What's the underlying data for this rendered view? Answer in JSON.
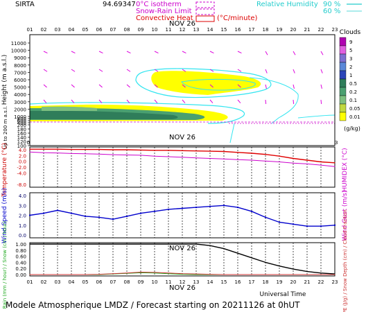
{
  "header": {
    "site": "SIRTA",
    "coords": "94.69347",
    "legend_isotherm": "0°C isotherm",
    "legend_snow_rain": "Snow-Rain Limit",
    "legend_convective": "Convective Heat",
    "legend_convective_unit": "(°C/minute)",
    "legend_rh": "Relative Humidity",
    "legend_rh_90": "90 %",
    "legend_rh_60": "60 %"
  },
  "date_label": "NOV 26",
  "hours": [
    "01",
    "02",
    "03",
    "04",
    "05",
    "06",
    "07",
    "08",
    "09",
    "10",
    "11",
    "12",
    "13",
    "14",
    "15",
    "16",
    "17",
    "18",
    "19",
    "20",
    "21",
    "22",
    "23"
  ],
  "footer": {
    "universal_time": "Universal Time",
    "title": "Modele Atmospherique LMDZ / Forecast starting on 20211126 at 0hUT"
  },
  "colors": {
    "cloud_yellow": "#ffff00",
    "cloud_green": "#5aa06a",
    "cloud_darkgreen": "#2f7d5a",
    "rh_cyan": "#33e5f0",
    "wind_arrow": "#dd00dd",
    "temperature": "#e00000",
    "humidex": "#cc00cc",
    "wind_speed": "#0000cc",
    "rain": "#22aa22",
    "snow": "#cc3333",
    "cloud_fraction": "#000000"
  },
  "cloud_scale": {
    "title": "Clouds",
    "unit": "(g/kg)",
    "levels": [
      "9",
      "5",
      "3",
      "2",
      "1",
      "0.5",
      "0.2",
      "0.1",
      "0.05",
      "0.01"
    ],
    "colors": [
      "#b000b0",
      "#e060e0",
      "#7d6fd0",
      "#5a88d8",
      "#2c45b8",
      "#2f7d5a",
      "#4aa070",
      "#7dc080",
      "#c0d840",
      "#ffff00"
    ]
  },
  "chart_data": [
    {
      "type": "heatmap",
      "title": "",
      "ylabel": "Height (m a.s.l.)",
      "ylabel2": "Up to 200 m a.s.l.",
      "yticks": [
        11000,
        10000,
        9000,
        8000,
        7000,
        6000,
        5000,
        4000,
        3000,
        2000,
        1000,
        800,
        600,
        400,
        200,
        180,
        160,
        140,
        120,
        100
      ],
      "x": [
        "01",
        "02",
        "03",
        "04",
        "05",
        "06",
        "07",
        "08",
        "09",
        "10",
        "11",
        "12",
        "13",
        "14",
        "15",
        "16",
        "17",
        "18",
        "19",
        "20",
        "21",
        "22",
        "23"
      ],
      "features": [
        "upper cloud layer ~5500-7000 m, 10h-17h, 0.01-0.05 g/kg",
        "low cloud layer below 2000 m, 01h-14h, up to 0.5 g/kg"
      ]
    },
    {
      "type": "line",
      "title": "",
      "ylabel": "Temperature (°C)",
      "ylabel2": "HUMIDEX (°C)",
      "x": [
        "01",
        "02",
        "03",
        "04",
        "05",
        "06",
        "07",
        "08",
        "09",
        "10",
        "11",
        "12",
        "13",
        "14",
        "15",
        "16",
        "17",
        "18",
        "19",
        "20",
        "21",
        "22",
        "23"
      ],
      "ylim": [
        -8.0,
        4.0
      ],
      "yticks": [
        "4.0",
        "2.0",
        "0.0",
        "-2.0",
        "-4.0",
        "-8.0"
      ],
      "series": [
        {
          "name": "Temperature",
          "values": [
            4.2,
            4.2,
            4.2,
            4.1,
            4.1,
            4.1,
            4.0,
            4.0,
            3.9,
            3.8,
            3.8,
            3.7,
            3.6,
            3.5,
            3.4,
            3.1,
            2.8,
            2.4,
            1.8,
            1.0,
            0.4,
            -0.2,
            -0.5
          ]
        },
        {
          "name": "HUMIDEX",
          "values": [
            3.2,
            3.0,
            2.9,
            2.7,
            2.6,
            2.5,
            2.3,
            2.2,
            2.1,
            1.8,
            1.6,
            1.4,
            1.2,
            1.0,
            0.8,
            0.6,
            0.4,
            0.1,
            -0.2,
            -0.6,
            -0.9,
            -1.3,
            -1.8
          ]
        }
      ]
    },
    {
      "type": "line",
      "title": "",
      "ylabel": "Wind Speed (m/s)",
      "ylabel2": "Wind Gust (m/s)",
      "x": [
        "01",
        "02",
        "03",
        "04",
        "05",
        "06",
        "07",
        "08",
        "09",
        "10",
        "11",
        "12",
        "13",
        "14",
        "15",
        "16",
        "17",
        "18",
        "19",
        "20",
        "21",
        "22",
        "23"
      ],
      "ylim": [
        0.0,
        4.0
      ],
      "yticks": [
        "4.0",
        "3.0",
        "2.0",
        "1.0",
        "0.0"
      ],
      "series": [
        {
          "name": "Wind Speed",
          "values": [
            2.0,
            2.2,
            2.5,
            2.2,
            1.9,
            1.8,
            1.6,
            1.9,
            2.2,
            2.4,
            2.6,
            2.7,
            2.8,
            2.9,
            3.0,
            2.8,
            2.4,
            1.8,
            1.3,
            1.1,
            0.9,
            0.9,
            1.0
          ]
        }
      ]
    },
    {
      "type": "line",
      "title": "",
      "ylabel": "Rain (mm / hour) / Snow (cm / hour)",
      "ylabel2": "CAPE (J/g) / Snow Depth (cm) / Cloud Fraction",
      "x": [
        "01",
        "02",
        "03",
        "04",
        "05",
        "06",
        "07",
        "08",
        "09",
        "10",
        "11",
        "12",
        "13",
        "14",
        "15",
        "16",
        "17",
        "18",
        "19",
        "20",
        "21",
        "22",
        "23"
      ],
      "ylim": [
        0.0,
        1.0
      ],
      "yticks": [
        "1.00",
        "0.80",
        "0.60",
        "0.40",
        "0.20",
        "0.00"
      ],
      "series": [
        {
          "name": "Cloud Fraction",
          "values": [
            1.0,
            1.0,
            1.0,
            1.0,
            1.0,
            1.0,
            1.0,
            1.0,
            1.0,
            1.0,
            1.0,
            1.0,
            1.0,
            0.95,
            0.85,
            0.7,
            0.55,
            0.4,
            0.28,
            0.18,
            0.1,
            0.05,
            0.02
          ]
        },
        {
          "name": "Rain",
          "values": [
            0,
            0,
            0,
            0,
            0,
            0,
            0.02,
            0.04,
            0.06,
            0.05,
            0.03,
            0.01,
            0,
            0,
            0,
            0,
            0,
            0,
            0,
            0,
            0,
            0,
            0
          ]
        },
        {
          "name": "Snow",
          "values": [
            0,
            0,
            0,
            0,
            0,
            0.01,
            0.03,
            0.05,
            0.08,
            0.07,
            0.05,
            0.03,
            0.02,
            0.01,
            0,
            0,
            0,
            0,
            0,
            0,
            0,
            0,
            0
          ]
        }
      ]
    }
  ]
}
